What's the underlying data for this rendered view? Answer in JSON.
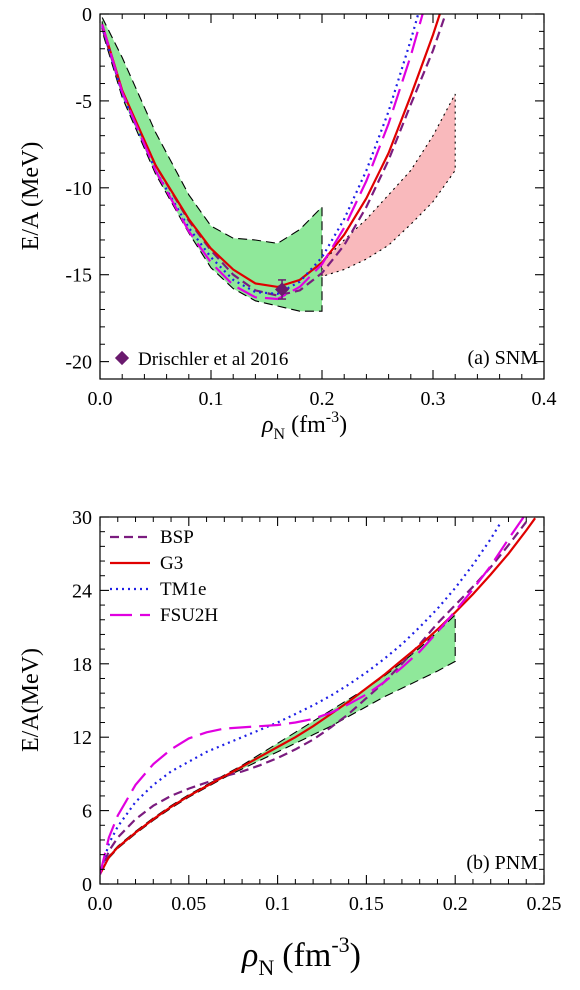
{
  "chart_data": [
    {
      "id": "snm",
      "type": "line",
      "panel_label": "(a) SNM",
      "xlabel": {
        "symbol": "ρ",
        "sub": "N",
        "unit": "(fm",
        "sup": "-3",
        "close": ")"
      },
      "ylabel": "E/A (MeV)",
      "xlim": [
        0,
        0.4
      ],
      "ylim": [
        -21,
        0
      ],
      "xticks": [
        0.0,
        0.1,
        0.2,
        0.3,
        0.4
      ],
      "xtick_labels": [
        "0.0",
        "0.1",
        "0.2",
        "0.3",
        "0.4"
      ],
      "yticks": [
        0,
        -5,
        -10,
        -15,
        -20
      ],
      "ytick_labels": [
        "0",
        "-5",
        "-10",
        "-15",
        "-20"
      ],
      "grid": false,
      "series": [
        {
          "key": "BSP",
          "color": "#7b1c7f",
          "style": "dash",
          "x": [
            0.002,
            0.02,
            0.05,
            0.08,
            0.1,
            0.12,
            0.14,
            0.16,
            0.18,
            0.2,
            0.22,
            0.24,
            0.26,
            0.28,
            0.3,
            0.32,
            0.325
          ],
          "y": [
            -0.8,
            -4.5,
            -8.7,
            -11.9,
            -13.6,
            -15.0,
            -15.9,
            -16.2,
            -15.9,
            -14.9,
            -13.3,
            -11.1,
            -8.4,
            -5.2,
            -2.1,
            1.6,
            2.6
          ]
        },
        {
          "key": "G3",
          "color": "#e00000",
          "style": "solid",
          "x": [
            0.002,
            0.02,
            0.05,
            0.08,
            0.1,
            0.12,
            0.14,
            0.16,
            0.18,
            0.2,
            0.22,
            0.24,
            0.26,
            0.28,
            0.3,
            0.32
          ],
          "y": [
            -0.6,
            -4.4,
            -8.7,
            -11.8,
            -13.5,
            -14.7,
            -15.5,
            -15.7,
            -15.3,
            -14.3,
            -12.7,
            -10.6,
            -8.0,
            -4.7,
            -1.2,
            2.7
          ]
        },
        {
          "key": "TM1e",
          "color": "#1f1fe6",
          "style": "dot",
          "x": [
            0.002,
            0.02,
            0.05,
            0.08,
            0.1,
            0.12,
            0.14,
            0.16,
            0.18,
            0.2,
            0.22,
            0.24,
            0.26,
            0.28,
            0.3
          ],
          "y": [
            -0.7,
            -4.6,
            -9.0,
            -12.3,
            -14.0,
            -15.3,
            -16.0,
            -16.1,
            -15.4,
            -14.0,
            -11.8,
            -9.0,
            -5.6,
            -1.5,
            3.0
          ]
        },
        {
          "key": "FSU2H",
          "color": "#e000e0",
          "style": "longdash",
          "x": [
            0.002,
            0.02,
            0.05,
            0.08,
            0.1,
            0.12,
            0.14,
            0.16,
            0.18,
            0.2,
            0.22,
            0.24,
            0.26,
            0.28,
            0.3
          ],
          "y": [
            -0.6,
            -4.5,
            -9.0,
            -12.5,
            -14.3,
            -15.6,
            -16.3,
            -16.4,
            -15.7,
            -14.4,
            -12.3,
            -9.6,
            -6.3,
            -2.4,
            2.1
          ]
        }
      ],
      "bands": [
        {
          "key": "green",
          "fill": "#8fe89a",
          "edge": "#000000",
          "edge_style": "dash",
          "upper": {
            "x": [
              0.002,
              0.02,
              0.05,
              0.08,
              0.1,
              0.12,
              0.14,
              0.16,
              0.18,
              0.2
            ],
            "y": [
              -0.2,
              -2.5,
              -6.8,
              -10.4,
              -12.2,
              -12.9,
              -13.0,
              -13.2,
              -12.4,
              -11.1
            ]
          },
          "lower": {
            "x": [
              0.002,
              0.02,
              0.05,
              0.08,
              0.1,
              0.12,
              0.14,
              0.16,
              0.18,
              0.2
            ],
            "y": [
              -1.0,
              -4.8,
              -9.2,
              -12.6,
              -14.6,
              -15.8,
              -16.5,
              -16.8,
              -17.1,
              -17.1
            ]
          }
        },
        {
          "key": "pink",
          "fill": "#f9b9bc",
          "edge": "#000000",
          "edge_style": "dot",
          "upper": {
            "x": [
              0.2,
              0.22,
              0.24,
              0.26,
              0.28,
              0.3,
              0.32
            ],
            "y": [
              -14.3,
              -13.0,
              -11.8,
              -10.4,
              -9.0,
              -7.0,
              -4.6
            ]
          },
          "lower": {
            "x": [
              0.2,
              0.22,
              0.24,
              0.26,
              0.28,
              0.3,
              0.32
            ],
            "y": [
              -15.1,
              -14.7,
              -14.1,
              -13.3,
              -12.1,
              -10.8,
              -9.0
            ]
          }
        }
      ],
      "points": [
        {
          "label": "Drischler et al 2016",
          "x": 0.164,
          "y": -15.85,
          "yerr": 0.55,
          "color": "#6a1a6e",
          "marker": "diamond"
        }
      ],
      "legend": {
        "placement": "bottom-left",
        "entries": [
          "Drischler et al 2016"
        ]
      }
    },
    {
      "id": "pnm",
      "type": "line",
      "panel_label": "(b) PNM",
      "xlabel": {
        "symbol": "ρ",
        "sub": "N",
        "unit": "(fm",
        "sup": "-3",
        "close": ")"
      },
      "ylabel": "E/A(MeV)",
      "xlim": [
        0,
        0.25
      ],
      "ylim": [
        0,
        30
      ],
      "xticks": [
        0.0,
        0.05,
        0.1,
        0.15,
        0.2,
        0.25
      ],
      "xtick_labels": [
        "0.0",
        "0.05",
        "0.1",
        "0.15",
        "0.2",
        "0.25"
      ],
      "yticks": [
        0,
        6,
        12,
        18,
        24,
        30
      ],
      "ytick_labels": [
        "0",
        "6",
        "12",
        "18",
        "24",
        "30"
      ],
      "grid": false,
      "series": [
        {
          "key": "BSP",
          "name": "BSP",
          "color": "#7b1c7f",
          "style": "dash",
          "x": [
            0.0,
            0.005,
            0.01,
            0.02,
            0.03,
            0.04,
            0.05,
            0.06,
            0.07,
            0.08,
            0.09,
            0.1,
            0.11,
            0.12,
            0.13,
            0.14,
            0.15,
            0.16,
            0.17,
            0.18,
            0.19,
            0.2,
            0.21,
            0.22,
            0.23,
            0.24
          ],
          "y": [
            0.8,
            2.7,
            3.8,
            5.3,
            6.4,
            7.2,
            7.8,
            8.3,
            8.8,
            9.2,
            9.7,
            10.3,
            11.0,
            11.8,
            12.8,
            13.9,
            15.2,
            16.5,
            18.0,
            19.6,
            21.3,
            22.8,
            24.3,
            25.9,
            27.7,
            29.6
          ]
        },
        {
          "key": "G3",
          "name": "G3",
          "color": "#e00000",
          "style": "solid",
          "x": [
            0.0,
            0.005,
            0.01,
            0.02,
            0.03,
            0.04,
            0.05,
            0.06,
            0.07,
            0.08,
            0.09,
            0.1,
            0.11,
            0.12,
            0.13,
            0.14,
            0.15,
            0.16,
            0.17,
            0.18,
            0.19,
            0.2,
            0.21,
            0.22,
            0.23,
            0.24,
            0.245
          ],
          "y": [
            0.8,
            2.2,
            3.0,
            4.2,
            5.3,
            6.3,
            7.2,
            8.0,
            8.8,
            9.6,
            10.4,
            11.2,
            12.0,
            12.9,
            13.9,
            14.9,
            16.0,
            17.1,
            18.3,
            19.5,
            20.8,
            22.2,
            23.7,
            25.3,
            27.0,
            28.9,
            29.9
          ]
        },
        {
          "key": "TM1e",
          "name": "TM1e",
          "color": "#1f1fe6",
          "style": "dot",
          "x": [
            0.0,
            0.005,
            0.01,
            0.02,
            0.03,
            0.04,
            0.05,
            0.06,
            0.07,
            0.08,
            0.09,
            0.1,
            0.11,
            0.12,
            0.13,
            0.14,
            0.15,
            0.16,
            0.17,
            0.18,
            0.19,
            0.2,
            0.21,
            0.22,
            0.225
          ],
          "y": [
            0.8,
            3.3,
            4.7,
            6.7,
            8.1,
            9.2,
            10.0,
            10.8,
            11.4,
            12.0,
            12.6,
            13.2,
            13.9,
            14.6,
            15.4,
            16.3,
            17.3,
            18.4,
            19.6,
            21.0,
            22.5,
            24.2,
            26.1,
            28.2,
            29.4
          ]
        },
        {
          "key": "FSU2H",
          "name": "FSU2H",
          "color": "#e000e0",
          "style": "longdash",
          "x": [
            0.0,
            0.005,
            0.01,
            0.02,
            0.03,
            0.04,
            0.05,
            0.06,
            0.07,
            0.08,
            0.09,
            0.1,
            0.11,
            0.12,
            0.13,
            0.14,
            0.15,
            0.16,
            0.17,
            0.18,
            0.19,
            0.2,
            0.21,
            0.22,
            0.23,
            0.24
          ],
          "y": [
            0.8,
            3.8,
            5.6,
            8.1,
            9.8,
            11.0,
            11.9,
            12.4,
            12.7,
            12.8,
            12.9,
            13.0,
            13.2,
            13.5,
            14.0,
            14.7,
            15.5,
            16.5,
            17.7,
            19.0,
            20.6,
            22.3,
            24.1,
            26.0,
            28.2,
            30.3
          ]
        }
      ],
      "bands": [
        {
          "key": "green",
          "fill": "#8fe89a",
          "edge": "#000000",
          "edge_style": "dash",
          "upper": {
            "x": [
              0.0,
              0.005,
              0.01,
              0.02,
              0.03,
              0.04,
              0.05,
              0.06,
              0.07,
              0.08,
              0.09,
              0.1,
              0.11,
              0.12,
              0.13,
              0.14,
              0.15,
              0.16,
              0.17,
              0.18,
              0.19,
              0.2
            ],
            "y": [
              0.8,
              2.3,
              3.1,
              4.3,
              5.4,
              6.4,
              7.3,
              8.1,
              8.9,
              9.7,
              10.6,
              11.5,
              12.4,
              13.3,
              14.2,
              15.1,
              16.0,
              17.0,
              18.1,
              19.3,
              20.6,
              22.0
            ]
          },
          "lower": {
            "x": [
              0.0,
              0.005,
              0.01,
              0.02,
              0.03,
              0.04,
              0.05,
              0.06,
              0.07,
              0.08,
              0.09,
              0.1,
              0.11,
              0.12,
              0.13,
              0.14,
              0.15,
              0.16,
              0.17,
              0.18,
              0.19,
              0.2
            ],
            "y": [
              0.8,
              2.1,
              2.9,
              4.1,
              5.2,
              6.2,
              7.1,
              7.9,
              8.7,
              9.4,
              10.1,
              10.8,
              11.5,
              12.2,
              12.9,
              13.7,
              14.5,
              15.3,
              16.0,
              16.7,
              17.4,
              18.2
            ]
          }
        }
      ],
      "legend": {
        "placement": "top-left",
        "entries": [
          "BSP",
          "G3",
          "TM1e",
          "FSU2H"
        ]
      }
    }
  ]
}
